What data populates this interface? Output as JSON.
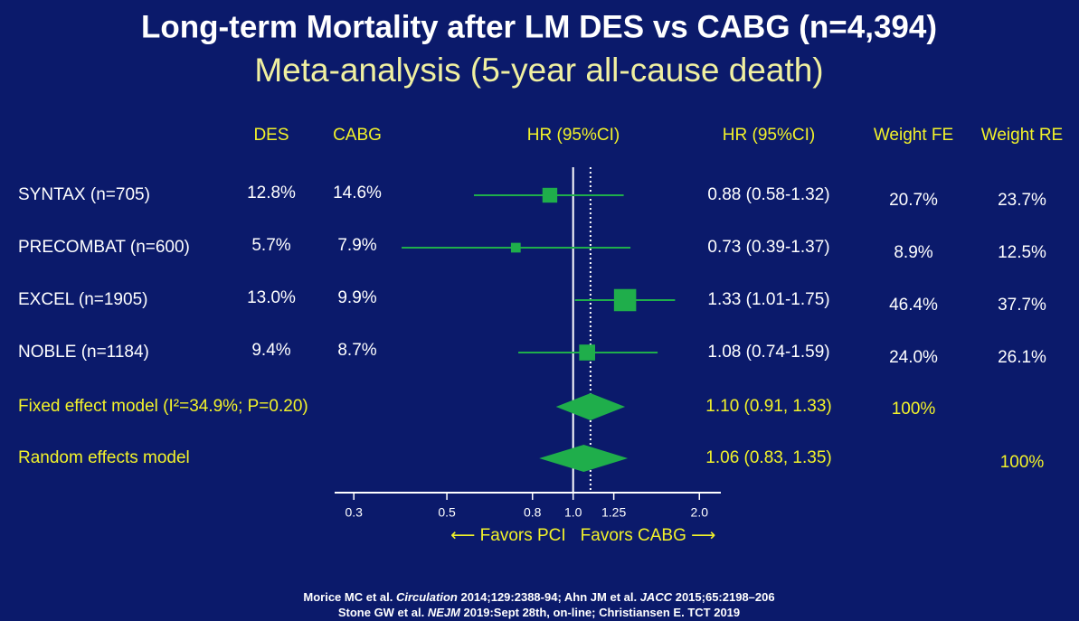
{
  "chart_data": {
    "type": "forest",
    "title": "Long-term Mortality after LM DES vs CABG (n=4,394)",
    "subtitle": "Meta-analysis (5-year all-cause death)",
    "headers": {
      "des": "DES",
      "cabg": "CABG",
      "plot": "HR (95%CI)",
      "hr": "HR (95%CI)",
      "weight_fe": "Weight FE",
      "weight_re": "Weight RE"
    },
    "studies": [
      {
        "label": "SYNTAX (n=705)",
        "des": "12.8%",
        "cabg": "14.6%",
        "hr": 0.88,
        "lo": 0.58,
        "hi": 1.32,
        "hr_label": "0.88 (0.58-1.32)",
        "weight_fe": 20.7,
        "weight_fe_label": "20.7%",
        "weight_re": 23.7,
        "weight_re_label": "23.7%"
      },
      {
        "label": "PRECOMBAT (n=600)",
        "des": "5.7%",
        "cabg": "7.9%",
        "hr": 0.73,
        "lo": 0.39,
        "hi": 1.37,
        "hr_label": "0.73 (0.39-1.37)",
        "weight_fe": 8.9,
        "weight_fe_label": "8.9%",
        "weight_re": 12.5,
        "weight_re_label": "12.5%"
      },
      {
        "label": "EXCEL (n=1905)",
        "des": "13.0%",
        "cabg": "9.9%",
        "hr": 1.33,
        "lo": 1.01,
        "hi": 1.75,
        "hr_label": "1.33 (1.01-1.75)",
        "weight_fe": 46.4,
        "weight_fe_label": "46.4%",
        "weight_re": 37.7,
        "weight_re_label": "37.7%"
      },
      {
        "label": "NOBLE (n=1184)",
        "des": "9.4%",
        "cabg": "8.7%",
        "hr": 1.08,
        "lo": 0.74,
        "hi": 1.59,
        "hr_label": "1.08 (0.74-1.59)",
        "weight_fe": 24.0,
        "weight_fe_label": "24.0%",
        "weight_re": 26.1,
        "weight_re_label": "26.1%"
      }
    ],
    "summaries": [
      {
        "label": "Fixed effect model (I²=34.9%; P=0.20)",
        "hr": 1.1,
        "lo": 0.91,
        "hi": 1.33,
        "hr_label": "1.10 (0.91, 1.33)",
        "weight_fe": 100,
        "weight_fe_label": "100%"
      },
      {
        "label": "Random effects model",
        "hr": 1.06,
        "lo": 0.83,
        "hi": 1.35,
        "hr_label": "1.06 (0.83, 1.35)",
        "weight_re": 100,
        "weight_re_label": "100%"
      }
    ],
    "log_x": true,
    "xlim": [
      0.27,
      2.25
    ],
    "xticks": [
      0.3,
      0.5,
      0.8,
      {
        "value": 1,
        "label": "1.0"
      },
      1.25,
      {
        "value": 2,
        "label": "2.0"
      }
    ],
    "color": "#1fae4b",
    "favors_left": "⟵ Favors PCI",
    "favors_right": "Favors CABG ⟶",
    "footnotes": [
      [
        "Morice MC et al. ",
        "Circulation",
        " 2014;129:2388-94; Ahn JM et al. ",
        "JACC",
        " 2015;65:2198–206"
      ],
      [
        "Stone GW et al. ",
        "NEJM",
        " 2019:Sept 28th, on-line; Christiansen E. TCT 2019"
      ]
    ]
  }
}
